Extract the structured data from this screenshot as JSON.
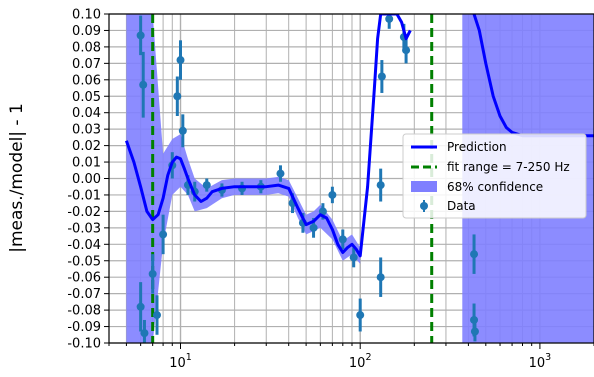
{
  "chart_data": {
    "type": "line",
    "title": "",
    "xlabel": "",
    "ylabel": "|meas./model| - 1",
    "xscale": "log",
    "xlim": [
      4,
      2000
    ],
    "ylim": [
      -0.1,
      0.1
    ],
    "x_tick_labels": [
      {
        "base": "10",
        "exp": "1",
        "value": 10
      },
      {
        "base": "10",
        "exp": "2",
        "value": 100
      },
      {
        "base": "10",
        "exp": "3",
        "value": 1000
      }
    ],
    "y_ticks": [
      -0.1,
      -0.09,
      -0.08,
      -0.07,
      -0.06,
      -0.05,
      -0.04,
      -0.03,
      -0.02,
      -0.01,
      0.0,
      0.01,
      0.02,
      0.03,
      0.04,
      0.05,
      0.06,
      0.07,
      0.08,
      0.09,
      0.1
    ],
    "y_tick_labels": [
      "-0.10",
      "-0.09",
      "-0.08",
      "-0.07",
      "-0.06",
      "-0.05",
      "-0.04",
      "-0.03",
      "-0.02",
      "-0.01",
      "0.00",
      "0.01",
      "0.02",
      "0.03",
      "0.04",
      "0.05",
      "0.06",
      "0.07",
      "0.08",
      "0.09",
      "0.10"
    ],
    "grid": true,
    "legend_position": "center-right",
    "series": [
      {
        "name": "Prediction",
        "kind": "line",
        "color": "#0000ff",
        "x": [
          5,
          5.5,
          6,
          6.5,
          7,
          7.5,
          8,
          8.5,
          9,
          9.5,
          10,
          10.5,
          11,
          12,
          13,
          14,
          15,
          17,
          20,
          25,
          30,
          35,
          40,
          45,
          50,
          55,
          60,
          65,
          70,
          75,
          80,
          85,
          90,
          95,
          100,
          110,
          120,
          125,
          130,
          140,
          150,
          160,
          170,
          180,
          190
        ],
        "y": [
          0.023,
          0.01,
          -0.005,
          -0.02,
          -0.025,
          -0.022,
          -0.012,
          0.002,
          0.01,
          0.013,
          0.012,
          0.006,
          0.0,
          -0.01,
          -0.014,
          -0.012,
          -0.008,
          -0.006,
          -0.005,
          -0.005,
          -0.005,
          -0.004,
          -0.006,
          -0.018,
          -0.028,
          -0.026,
          -0.022,
          -0.024,
          -0.031,
          -0.04,
          -0.045,
          -0.042,
          -0.04,
          -0.043,
          -0.047,
          -0.005,
          0.055,
          0.085,
          0.1,
          0.1,
          0.1,
          0.1,
          0.095,
          0.085,
          0.09
        ]
      },
      {
        "name": "Prediction",
        "kind": "line",
        "segment": "upper-right",
        "color": "#0000ff",
        "x": [
          430,
          460,
          500,
          550,
          600,
          650,
          700,
          800,
          1000,
          1500,
          2000
        ],
        "y": [
          0.1,
          0.09,
          0.07,
          0.05,
          0.038,
          0.031,
          0.028,
          0.026,
          0.026,
          0.026,
          0.026
        ]
      },
      {
        "name": "fit range = 7-250 Hz",
        "kind": "vline",
        "color": "#008000",
        "x": [
          7,
          250
        ]
      },
      {
        "name": "68% confidence",
        "kind": "band",
        "color": "#7f7fff",
        "segments": [
          {
            "x": [
              5,
              6,
              7,
              8,
              9,
              10,
              11,
              12,
              14,
              17,
              20,
              25,
              30,
              35,
              40,
              45,
              50,
              55,
              60,
              70,
              80,
              90,
              100
            ],
            "lower": [
              -0.1,
              -0.1,
              -0.1,
              -0.04,
              -0.01,
              -0.005,
              -0.01,
              -0.02,
              -0.018,
              -0.012,
              -0.01,
              -0.01,
              -0.01,
              -0.009,
              -0.011,
              -0.024,
              -0.034,
              -0.032,
              -0.03,
              -0.037,
              -0.05,
              -0.046,
              -0.052
            ],
            "upper": [
              0.1,
              0.1,
              0.1,
              0.015,
              0.024,
              0.027,
              0.012,
              0.0,
              -0.006,
              -0.001,
              0.0,
              0.0,
              0.0,
              0.001,
              -0.001,
              -0.012,
              -0.022,
              -0.02,
              -0.016,
              -0.025,
              -0.038,
              -0.034,
              -0.042
            ]
          },
          {
            "x": [
              370,
              400,
              500,
              700,
              1000,
              1500,
              2000
            ],
            "lower": [
              -0.1,
              -0.1,
              -0.1,
              -0.1,
              -0.1,
              -0.1,
              -0.1
            ],
            "upper": [
              0.1,
              0.1,
              0.1,
              0.1,
              0.1,
              0.1,
              0.1
            ]
          }
        ]
      },
      {
        "name": "Data",
        "kind": "errorbar",
        "color": "#1f77b4",
        "points": [
          {
            "x": 6.0,
            "y": 0.087,
            "err": 0.012
          },
          {
            "x": 6.2,
            "y": 0.057,
            "err": 0.02
          },
          {
            "x": 6.0,
            "y": -0.078,
            "err": 0.015
          },
          {
            "x": 6.3,
            "y": -0.094,
            "err": 0.008
          },
          {
            "x": 7.0,
            "y": -0.058,
            "err": 0.012
          },
          {
            "x": 7.4,
            "y": -0.083,
            "err": 0.012
          },
          {
            "x": 8.0,
            "y": -0.034,
            "err": 0.012
          },
          {
            "x": 9.0,
            "y": 0.008,
            "err": 0.008
          },
          {
            "x": 9.6,
            "y": 0.05,
            "err": 0.012
          },
          {
            "x": 10.0,
            "y": 0.072,
            "err": 0.012
          },
          {
            "x": 10.3,
            "y": 0.029,
            "err": 0.01
          },
          {
            "x": 11.0,
            "y": -0.004,
            "err": 0.006
          },
          {
            "x": 12.0,
            "y": -0.008,
            "err": 0.006
          },
          {
            "x": 14.0,
            "y": -0.004,
            "err": 0.004
          },
          {
            "x": 17.0,
            "y": -0.007,
            "err": 0.004
          },
          {
            "x": 22.0,
            "y": -0.006,
            "err": 0.004
          },
          {
            "x": 28.0,
            "y": -0.005,
            "err": 0.004
          },
          {
            "x": 36.0,
            "y": 0.003,
            "err": 0.005
          },
          {
            "x": 42.0,
            "y": -0.015,
            "err": 0.006
          },
          {
            "x": 48.0,
            "y": -0.027,
            "err": 0.006
          },
          {
            "x": 55.0,
            "y": -0.03,
            "err": 0.006
          },
          {
            "x": 62.0,
            "y": -0.02,
            "err": 0.005
          },
          {
            "x": 70.0,
            "y": -0.01,
            "err": 0.005
          },
          {
            "x": 80.0,
            "y": -0.037,
            "err": 0.006
          },
          {
            "x": 92.0,
            "y": -0.048,
            "err": 0.006
          },
          {
            "x": 100.0,
            "y": -0.083,
            "err": 0.01
          },
          {
            "x": 130.0,
            "y": -0.004,
            "err": 0.01
          },
          {
            "x": 130.0,
            "y": -0.06,
            "err": 0.012
          },
          {
            "x": 132.0,
            "y": 0.062,
            "err": 0.01
          },
          {
            "x": 145.0,
            "y": 0.097,
            "err": 0.006
          },
          {
            "x": 175.0,
            "y": 0.086,
            "err": 0.008
          },
          {
            "x": 180.0,
            "y": 0.078,
            "err": 0.008
          },
          {
            "x": 430.0,
            "y": -0.046,
            "err": 0.012
          },
          {
            "x": 430.0,
            "y": -0.086,
            "err": 0.01
          },
          {
            "x": 435.0,
            "y": -0.093,
            "err": 0.006
          }
        ]
      }
    ]
  }
}
